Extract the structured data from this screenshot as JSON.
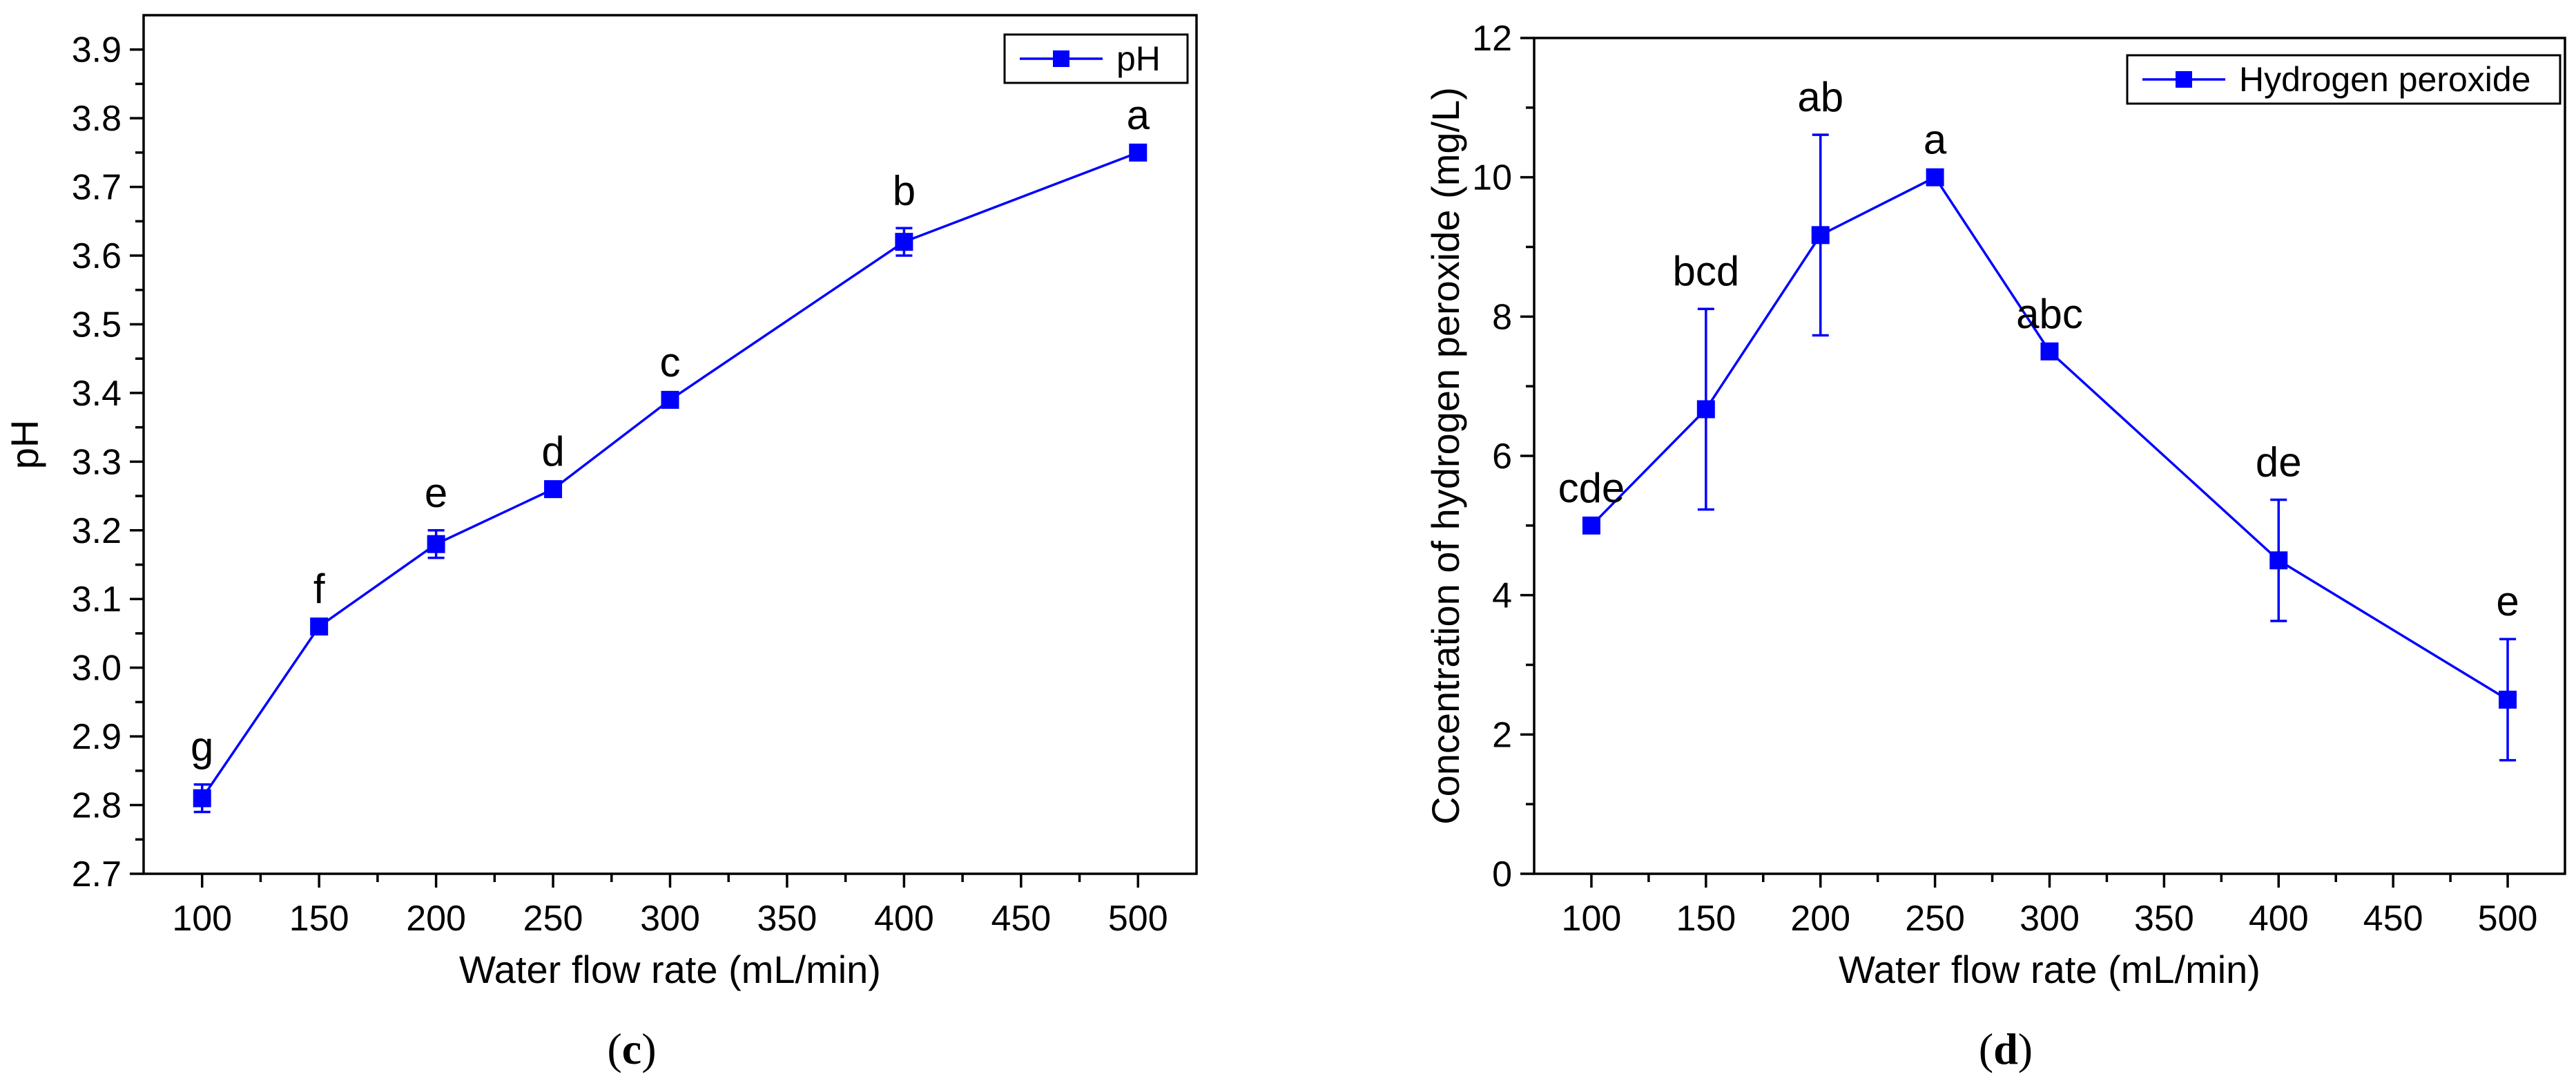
{
  "chart_data": [
    {
      "id": "c",
      "type": "line",
      "caption": "c",
      "xlabel": "Water flow rate (mL/min)",
      "ylabel": "pH",
      "xlim": [
        75,
        525
      ],
      "ylim": [
        2.7,
        3.95
      ],
      "xticks": [
        100,
        150,
        200,
        250,
        300,
        350,
        400,
        450,
        500
      ],
      "yticks": [
        2.7,
        2.8,
        2.9,
        3.0,
        3.1,
        3.2,
        3.3,
        3.4,
        3.5,
        3.6,
        3.7,
        3.8,
        3.9
      ],
      "ytick_labels": [
        "2.7",
        "2.8",
        "2.9",
        "3.0",
        "3.1",
        "3.2",
        "3.3",
        "3.4",
        "3.5",
        "3.6",
        "3.7",
        "3.8",
        "3.9"
      ],
      "legend": "pH",
      "legend_position": "top-right",
      "color": "#0000ff",
      "x": [
        100,
        150,
        200,
        250,
        300,
        400,
        500
      ],
      "y": [
        2.81,
        3.06,
        3.18,
        3.26,
        3.39,
        3.62,
        3.75
      ],
      "err": [
        0.02,
        0.0,
        0.02,
        0.0,
        0.0,
        0.02,
        0.0
      ],
      "letters": [
        "g",
        "f",
        "e",
        "d",
        "c",
        "b",
        "a"
      ]
    },
    {
      "id": "d",
      "type": "line",
      "caption": "d",
      "xlabel": "Water flow rate (mL/min)",
      "ylabel": "Concentration of hydrogen peroxide (mg/L)",
      "xlim": [
        75,
        525
      ],
      "ylim": [
        0,
        12
      ],
      "xticks": [
        100,
        150,
        200,
        250,
        300,
        350,
        400,
        450,
        500
      ],
      "yticks": [
        0,
        2,
        4,
        6,
        8,
        10,
        12
      ],
      "ytick_labels": [
        "0",
        "2",
        "4",
        "6",
        "8",
        "10",
        "12"
      ],
      "legend": "Hydrogen peroxide",
      "legend_position": "top-right",
      "color": "#0000ff",
      "x": [
        100,
        150,
        200,
        250,
        300,
        400,
        500
      ],
      "y": [
        5.0,
        6.67,
        9.17,
        10.0,
        7.5,
        4.5,
        2.5
      ],
      "err": [
        0.0,
        1.44,
        1.44,
        0.0,
        0.0,
        0.87,
        0.87
      ],
      "letters": [
        "cde",
        "bcd",
        "ab",
        "a",
        "abc",
        "de",
        "e"
      ]
    }
  ]
}
